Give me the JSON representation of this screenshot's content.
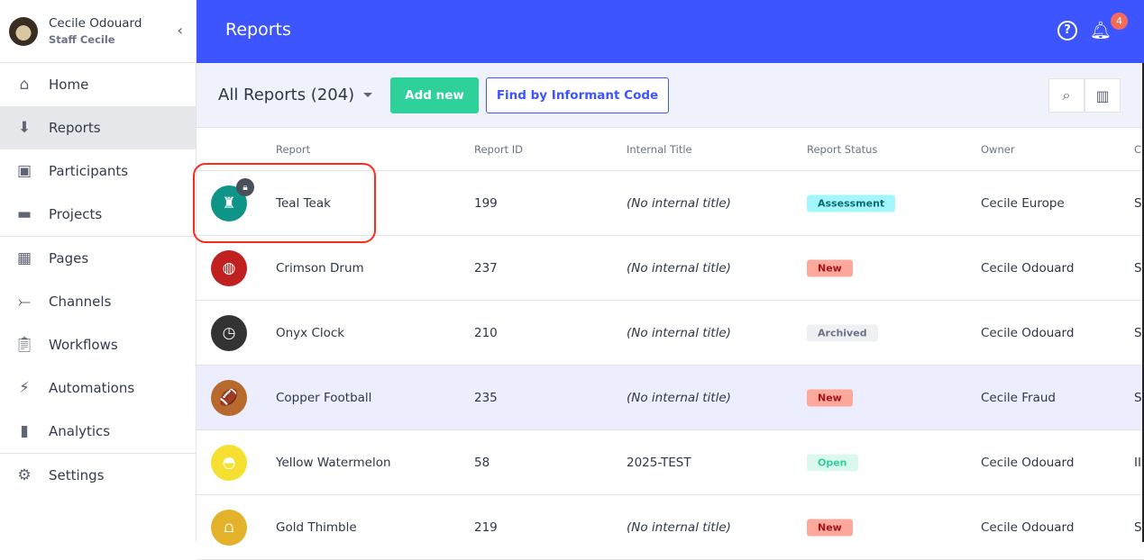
{
  "user": {
    "name": "Cecile Odouard",
    "role": "Staff Cecile"
  },
  "sidebar": {
    "items": [
      {
        "label": "Home",
        "icon": "home-icon"
      },
      {
        "label": "Reports",
        "icon": "inbox-download-icon",
        "active": true
      },
      {
        "label": "Participants",
        "icon": "contact-calendar-icon"
      },
      {
        "label": "Projects",
        "icon": "folder-icon"
      },
      {
        "label": "Pages",
        "icon": "layout-icon"
      },
      {
        "label": "Channels",
        "icon": "merge-arrow-icon"
      },
      {
        "label": "Workflows",
        "icon": "clipboard-icon"
      },
      {
        "label": "Automations",
        "icon": "lightning-icon"
      },
      {
        "label": "Analytics",
        "icon": "bar-chart-icon"
      },
      {
        "label": "Settings",
        "icon": "gear-icon"
      }
    ]
  },
  "header": {
    "title": "Reports",
    "notifications": "4"
  },
  "toolbar": {
    "view": "All Reports (204)",
    "add_new": "Add new",
    "find": "Find by Informant Code"
  },
  "table": {
    "columns": [
      "Report",
      "Report ID",
      "Internal Title",
      "Report Status",
      "Owner",
      "Ch"
    ],
    "rows": [
      {
        "name": "Teal Teak",
        "id": "199",
        "title": "(No internal title)",
        "status": "Assessment",
        "owner": "Cecile Europe",
        "extra": "S",
        "color": "#0f9488",
        "glyph": "♜",
        "locked": true
      },
      {
        "name": "Crimson Drum",
        "id": "237",
        "title": "(No internal title)",
        "status": "New",
        "owner": "Cecile Odouard",
        "extra": "S",
        "color": "#c0201f",
        "glyph": "◍"
      },
      {
        "name": "Onyx Clock",
        "id": "210",
        "title": "(No internal title)",
        "status": "Archived",
        "owner": "Cecile Odouard",
        "extra": "S",
        "color": "#333333",
        "glyph": "◷"
      },
      {
        "name": "Copper Football",
        "id": "235",
        "title": "(No internal title)",
        "status": "New",
        "owner": "Cecile Fraud",
        "extra": "S",
        "color": "#b8692e",
        "glyph": "🏈"
      },
      {
        "name": "Yellow Watermelon",
        "id": "58",
        "title": "2025-TEST",
        "status": "Open",
        "owner": "Cecile Odouard",
        "extra": "II",
        "color": "#f5e032",
        "glyph": "◓"
      },
      {
        "name": "Gold Thimble",
        "id": "219",
        "title": "(No internal title)",
        "status": "New",
        "owner": "Cecile Odouard",
        "extra": "S",
        "color": "#e4b22a",
        "glyph": "⩍"
      }
    ]
  },
  "status_colors": {
    "Assessment": [
      "#a3f7fb",
      "#0b6b73"
    ],
    "New": [
      "#fca89b",
      "#a5141a"
    ],
    "Archived": [
      "#eef0f2",
      "#6b7385"
    ],
    "Open": [
      "#dcf8ee",
      "#2fd19a"
    ]
  }
}
